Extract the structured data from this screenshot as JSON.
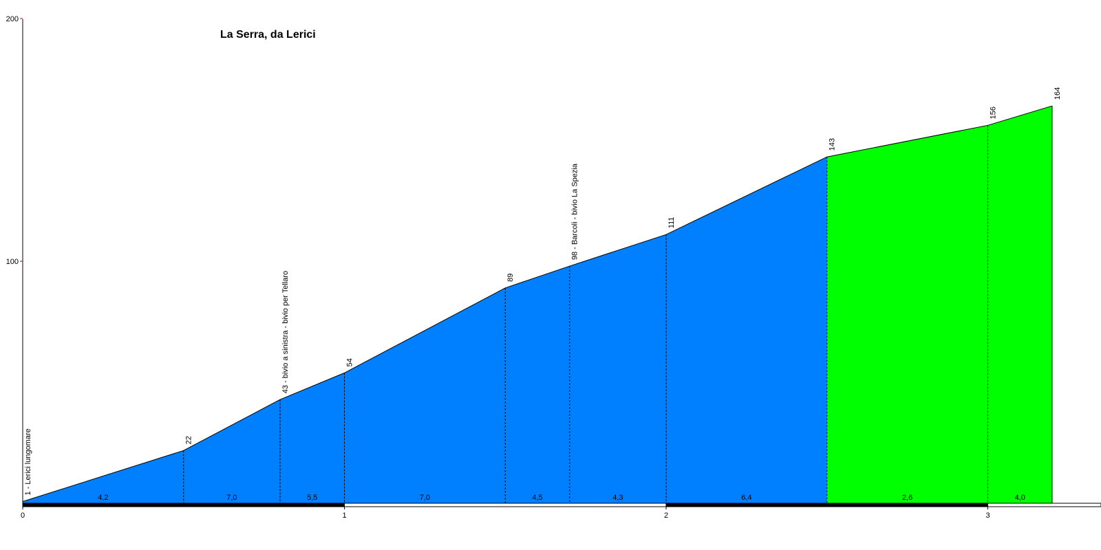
{
  "chart_data": {
    "type": "area",
    "title": "La Serra, da Lerici",
    "xlabel": "",
    "ylabel": "",
    "xlim": [
      0,
      3.35
    ],
    "ylim": [
      0,
      200
    ],
    "x_ticks": [
      "0",
      "1",
      "2",
      "3"
    ],
    "y_ticks": [
      "100",
      "200"
    ],
    "points": [
      {
        "x": 0.0,
        "y": 1,
        "label": "1 - Lerici lungomare"
      },
      {
        "x": 0.5,
        "y": 22,
        "label": "22"
      },
      {
        "x": 0.8,
        "y": 43,
        "label": "43 - bivio a sinistra - bivio per Tellaro"
      },
      {
        "x": 1.0,
        "y": 54,
        "label": "54"
      },
      {
        "x": 1.5,
        "y": 89,
        "label": "89"
      },
      {
        "x": 1.7,
        "y": 98,
        "label": "98 - Barcoli - bivio La Spezia"
      },
      {
        "x": 2.0,
        "y": 111,
        "label": "111"
      },
      {
        "x": 2.5,
        "y": 143,
        "label": "143"
      },
      {
        "x": 3.0,
        "y": 156,
        "label": "156"
      },
      {
        "x": 3.2,
        "y": 164,
        "label": "164"
      }
    ],
    "gradients": [
      {
        "from": 0.0,
        "to": 0.5,
        "value": "4,2",
        "color": "#0080ff"
      },
      {
        "from": 0.5,
        "to": 0.8,
        "value": "7,0",
        "color": "#0080ff"
      },
      {
        "from": 0.8,
        "to": 1.0,
        "value": "5,5",
        "color": "#0080ff"
      },
      {
        "from": 1.0,
        "to": 1.5,
        "value": "7,0",
        "color": "#0080ff"
      },
      {
        "from": 1.5,
        "to": 1.7,
        "value": "4,5",
        "color": "#0080ff"
      },
      {
        "from": 1.7,
        "to": 2.0,
        "value": "4,3",
        "color": "#0080ff"
      },
      {
        "from": 2.0,
        "to": 2.5,
        "value": "6,4",
        "color": "#0080ff"
      },
      {
        "from": 2.5,
        "to": 3.0,
        "value": "2,6",
        "color": "#00ff00"
      },
      {
        "from": 3.0,
        "to": 3.2,
        "value": "4,0",
        "color": "#00ff00"
      }
    ],
    "colors": {
      "axis_tick": "#c00000",
      "outline": "#000000",
      "km_bar_dark": "#000000",
      "km_bar_light": "#ffffff"
    }
  }
}
